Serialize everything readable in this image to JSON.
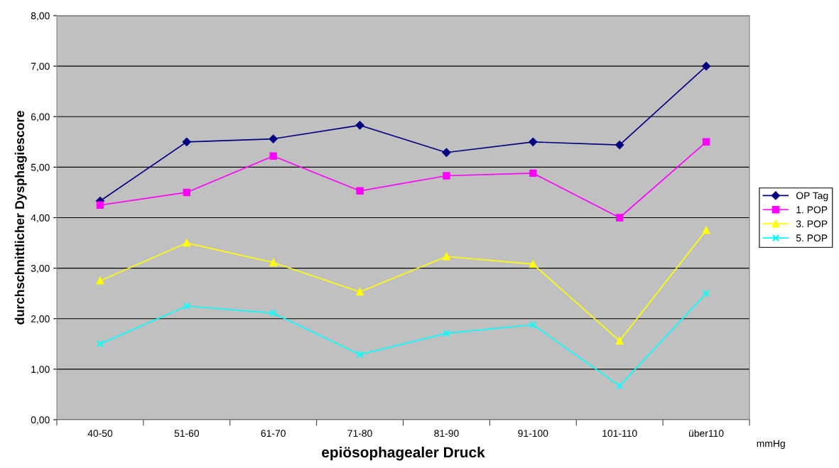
{
  "chart_data": {
    "type": "line",
    "xlabel": "epiösophagealer Druck",
    "ylabel": "durchschnittlicher Dysphagiescore",
    "categories": [
      "40-50",
      "51-60",
      "61-70",
      "71-80",
      "81-90",
      "91-100",
      "101-110",
      "über110"
    ],
    "series": [
      {
        "name": "OP Tag",
        "color": "#000080",
        "marker": "diamond",
        "values": [
          4.33,
          5.5,
          5.56,
          5.83,
          5.29,
          5.5,
          5.44,
          7.0
        ]
      },
      {
        "name": "1. POP",
        "color": "#ff00ff",
        "marker": "square",
        "values": [
          4.25,
          4.5,
          5.22,
          4.53,
          4.83,
          4.88,
          4.0,
          5.5
        ]
      },
      {
        "name": "3. POP",
        "color": "#ffff00",
        "marker": "triangle",
        "values": [
          2.75,
          3.5,
          3.11,
          2.53,
          3.23,
          3.08,
          1.56,
          3.75
        ]
      },
      {
        "name": "5. POP",
        "color": "#00ffff",
        "marker": "cross",
        "values": [
          1.5,
          2.25,
          2.11,
          1.29,
          1.71,
          1.88,
          0.67,
          2.5
        ]
      }
    ],
    "ylim": [
      0,
      8
    ],
    "yticks": [
      {
        "value": 0,
        "label": "0,00"
      },
      {
        "value": 1,
        "label": "1,00"
      },
      {
        "value": 2,
        "label": "2,00"
      },
      {
        "value": 3,
        "label": "3,00"
      },
      {
        "value": 4,
        "label": "4,00"
      },
      {
        "value": 5,
        "label": "5,00"
      },
      {
        "value": 6,
        "label": "6,00"
      },
      {
        "value": 7,
        "label": "7,00"
      },
      {
        "value": 8,
        "label": "8,00"
      }
    ],
    "grid": "y",
    "legend": "right",
    "annotations": [
      "mmHg"
    ]
  }
}
